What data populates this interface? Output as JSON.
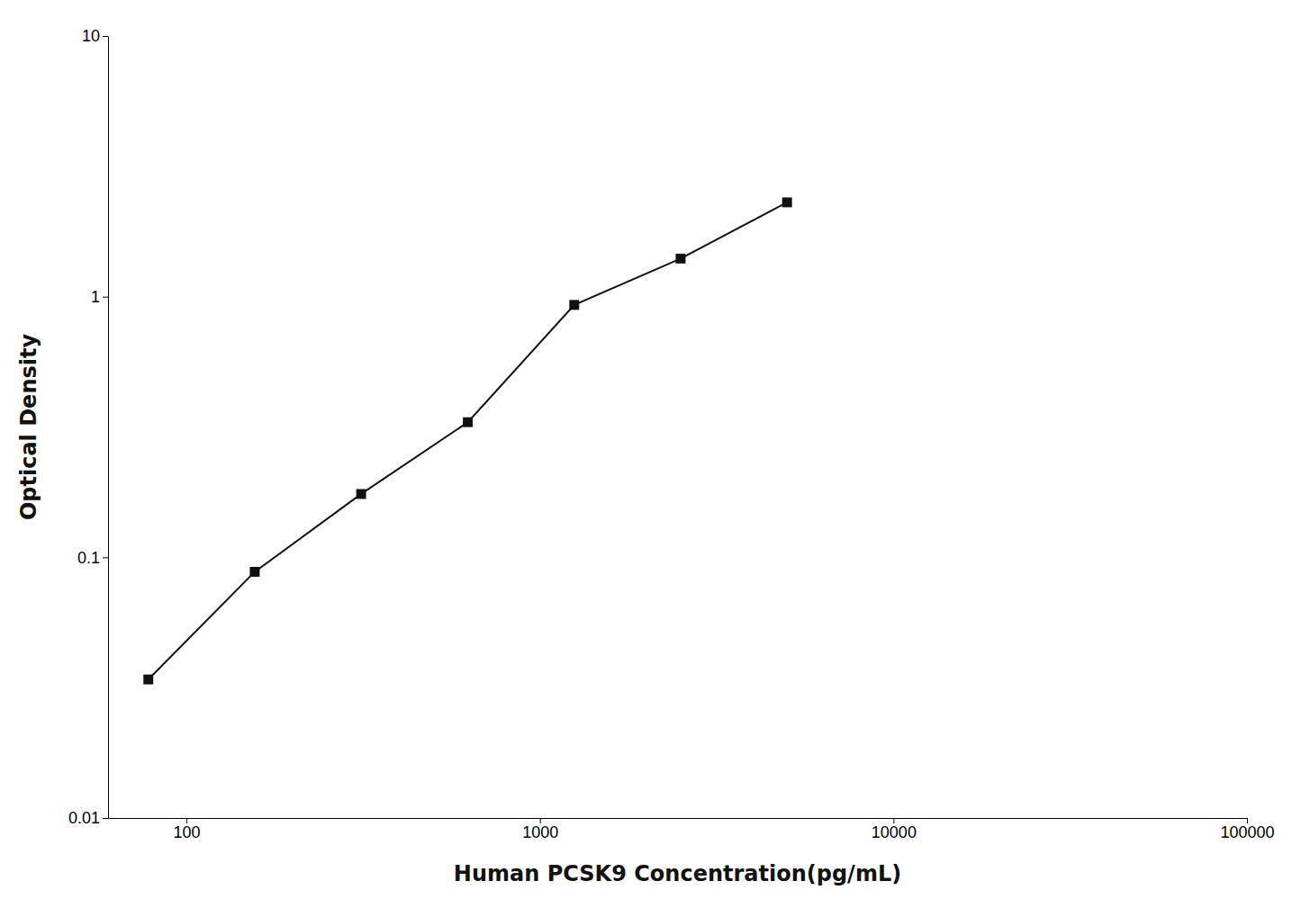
{
  "chart_data": {
    "type": "line",
    "x": [
      78,
      156,
      312,
      625,
      1250,
      2500,
      5000
    ],
    "values": [
      0.034,
      0.088,
      0.175,
      0.33,
      0.93,
      1.4,
      2.3
    ],
    "xlabel": "Human PCSK9 Concentration(pg/mL)",
    "ylabel": "Optical Density",
    "xlim": [
      60,
      100000
    ],
    "ylim": [
      0.01,
      10
    ],
    "xticks": [
      100,
      1000,
      10000,
      100000
    ],
    "yticks": [
      0.01,
      0.1,
      1,
      10
    ],
    "log": true,
    "marker": "square",
    "color": "#111111",
    "grid": false
  }
}
